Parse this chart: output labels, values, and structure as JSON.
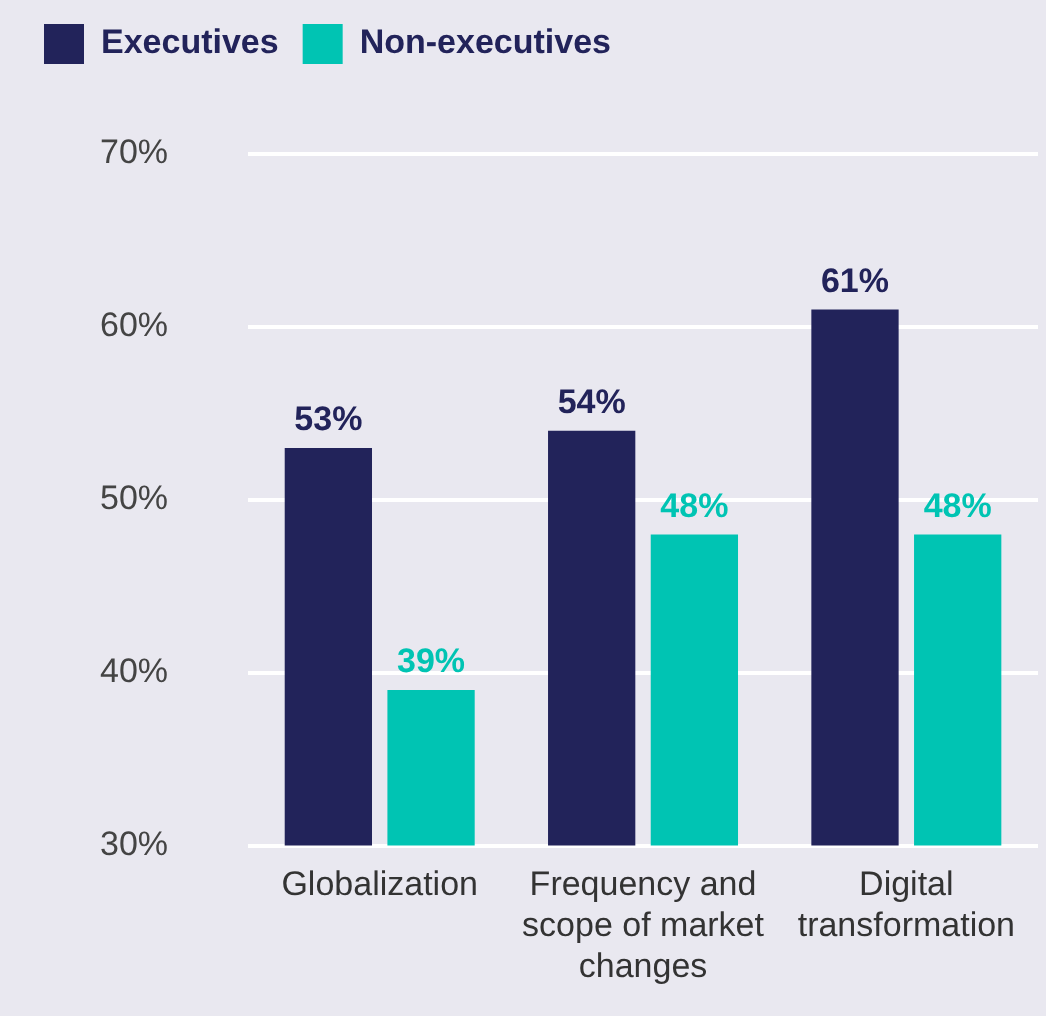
{
  "chart_data": {
    "type": "bar",
    "categories": [
      "Globalization",
      "Frequency and scope of market changes",
      "Digital transformation"
    ],
    "series": [
      {
        "name": "Executives",
        "color": "#22235a",
        "values": [
          53,
          54,
          61
        ],
        "value_labels": [
          "53%",
          "54%",
          "61%"
        ]
      },
      {
        "name": "Non-executives",
        "color": "#00c4b3",
        "values": [
          39,
          48,
          48
        ],
        "value_labels": [
          "39%",
          "48%",
          "48%"
        ]
      }
    ],
    "ylim": [
      30,
      70
    ],
    "yticks": [
      {
        "value": 30,
        "label": "30%"
      },
      {
        "value": 40,
        "label": "40%"
      },
      {
        "value": 50,
        "label": "50%"
      },
      {
        "value": 60,
        "label": "60%"
      },
      {
        "value": 70,
        "label": "70%"
      }
    ],
    "grid": "y",
    "legend": "top"
  }
}
